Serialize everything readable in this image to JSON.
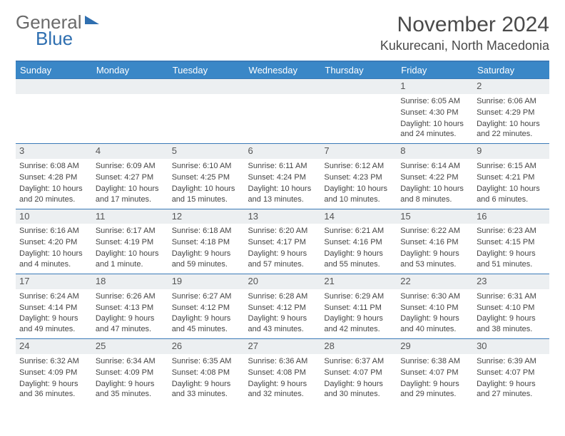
{
  "logo": {
    "line1": "General",
    "line2": "Blue"
  },
  "header": {
    "month": "November 2024",
    "location": "Kukurecani, North Macedonia"
  },
  "colors": {
    "header_bg": "#3a87c7",
    "header_text": "#ffffff",
    "rule": "#3a7ab8",
    "daynum_bg": "#eceff1",
    "text": "#444444",
    "logo_gray": "#6a6a6a",
    "logo_blue": "#2f6fb0"
  },
  "dayNames": [
    "Sunday",
    "Monday",
    "Tuesday",
    "Wednesday",
    "Thursday",
    "Friday",
    "Saturday"
  ],
  "firstWeekday": 5,
  "daysInMonth": 30,
  "days": {
    "1": {
      "sunrise": "6:05 AM",
      "sunset": "4:30 PM",
      "daylight": "10 hours and 24 minutes."
    },
    "2": {
      "sunrise": "6:06 AM",
      "sunset": "4:29 PM",
      "daylight": "10 hours and 22 minutes."
    },
    "3": {
      "sunrise": "6:08 AM",
      "sunset": "4:28 PM",
      "daylight": "10 hours and 20 minutes."
    },
    "4": {
      "sunrise": "6:09 AM",
      "sunset": "4:27 PM",
      "daylight": "10 hours and 17 minutes."
    },
    "5": {
      "sunrise": "6:10 AM",
      "sunset": "4:25 PM",
      "daylight": "10 hours and 15 minutes."
    },
    "6": {
      "sunrise": "6:11 AM",
      "sunset": "4:24 PM",
      "daylight": "10 hours and 13 minutes."
    },
    "7": {
      "sunrise": "6:12 AM",
      "sunset": "4:23 PM",
      "daylight": "10 hours and 10 minutes."
    },
    "8": {
      "sunrise": "6:14 AM",
      "sunset": "4:22 PM",
      "daylight": "10 hours and 8 minutes."
    },
    "9": {
      "sunrise": "6:15 AM",
      "sunset": "4:21 PM",
      "daylight": "10 hours and 6 minutes."
    },
    "10": {
      "sunrise": "6:16 AM",
      "sunset": "4:20 PM",
      "daylight": "10 hours and 4 minutes."
    },
    "11": {
      "sunrise": "6:17 AM",
      "sunset": "4:19 PM",
      "daylight": "10 hours and 1 minute."
    },
    "12": {
      "sunrise": "6:18 AM",
      "sunset": "4:18 PM",
      "daylight": "9 hours and 59 minutes."
    },
    "13": {
      "sunrise": "6:20 AM",
      "sunset": "4:17 PM",
      "daylight": "9 hours and 57 minutes."
    },
    "14": {
      "sunrise": "6:21 AM",
      "sunset": "4:16 PM",
      "daylight": "9 hours and 55 minutes."
    },
    "15": {
      "sunrise": "6:22 AM",
      "sunset": "4:16 PM",
      "daylight": "9 hours and 53 minutes."
    },
    "16": {
      "sunrise": "6:23 AM",
      "sunset": "4:15 PM",
      "daylight": "9 hours and 51 minutes."
    },
    "17": {
      "sunrise": "6:24 AM",
      "sunset": "4:14 PM",
      "daylight": "9 hours and 49 minutes."
    },
    "18": {
      "sunrise": "6:26 AM",
      "sunset": "4:13 PM",
      "daylight": "9 hours and 47 minutes."
    },
    "19": {
      "sunrise": "6:27 AM",
      "sunset": "4:12 PM",
      "daylight": "9 hours and 45 minutes."
    },
    "20": {
      "sunrise": "6:28 AM",
      "sunset": "4:12 PM",
      "daylight": "9 hours and 43 minutes."
    },
    "21": {
      "sunrise": "6:29 AM",
      "sunset": "4:11 PM",
      "daylight": "9 hours and 42 minutes."
    },
    "22": {
      "sunrise": "6:30 AM",
      "sunset": "4:10 PM",
      "daylight": "9 hours and 40 minutes."
    },
    "23": {
      "sunrise": "6:31 AM",
      "sunset": "4:10 PM",
      "daylight": "9 hours and 38 minutes."
    },
    "24": {
      "sunrise": "6:32 AM",
      "sunset": "4:09 PM",
      "daylight": "9 hours and 36 minutes."
    },
    "25": {
      "sunrise": "6:34 AM",
      "sunset": "4:09 PM",
      "daylight": "9 hours and 35 minutes."
    },
    "26": {
      "sunrise": "6:35 AM",
      "sunset": "4:08 PM",
      "daylight": "9 hours and 33 minutes."
    },
    "27": {
      "sunrise": "6:36 AM",
      "sunset": "4:08 PM",
      "daylight": "9 hours and 32 minutes."
    },
    "28": {
      "sunrise": "6:37 AM",
      "sunset": "4:07 PM",
      "daylight": "9 hours and 30 minutes."
    },
    "29": {
      "sunrise": "6:38 AM",
      "sunset": "4:07 PM",
      "daylight": "9 hours and 29 minutes."
    },
    "30": {
      "sunrise": "6:39 AM",
      "sunset": "4:07 PM",
      "daylight": "9 hours and 27 minutes."
    }
  },
  "labels": {
    "sunrise": "Sunrise: ",
    "sunset": "Sunset: ",
    "daylight": "Daylight: "
  }
}
